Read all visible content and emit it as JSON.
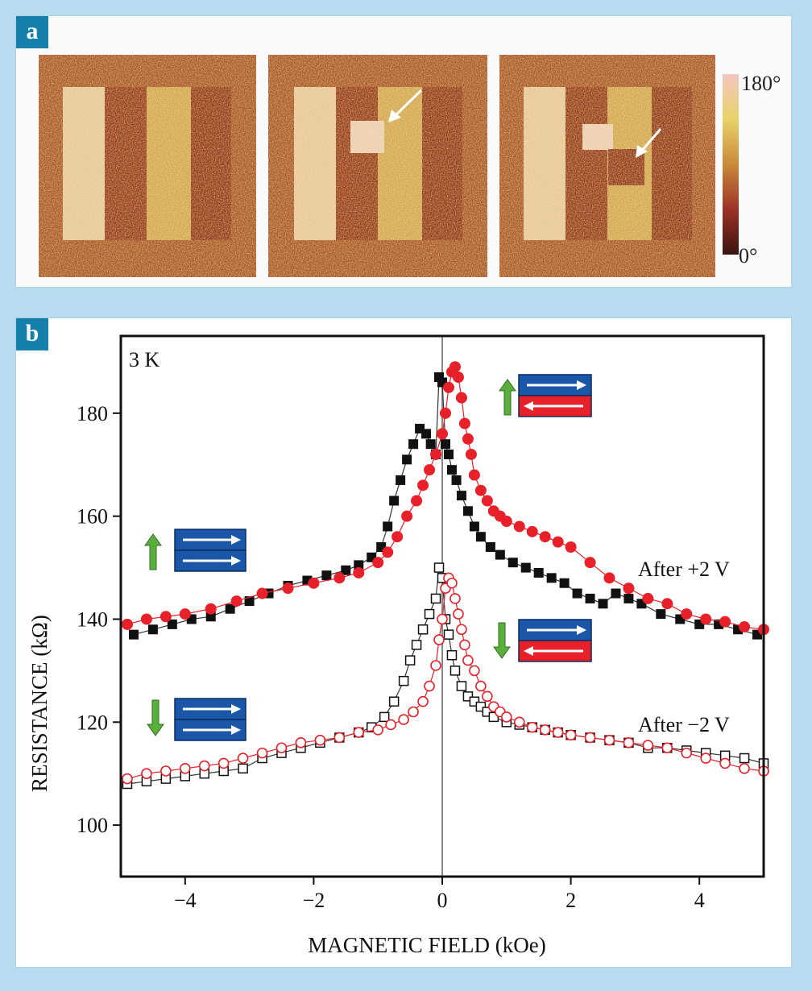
{
  "panel_a": {
    "letter": "a",
    "colorbar": {
      "max_label": "180°",
      "min_label": "0°"
    }
  },
  "panel_b": {
    "letter": "b",
    "temperature_label": "3 K",
    "annotation_top": "After +2 V",
    "annotation_bottom": "After −2 V"
  },
  "colors": {
    "frame": "#1680ad",
    "background": "#b8dcef",
    "red": "#e8202a",
    "black": "#111111",
    "arrow_green": "#5aae3c",
    "layer_blue": "#1b57a8"
  },
  "icons": [
    "green-up-arrow-icon",
    "green-down-arrow-icon",
    "parallel-magnetization-icon",
    "antiparallel-magnetization-icon",
    "white-arrow-icon"
  ],
  "chart_data": {
    "type": "scatter",
    "xlabel": "MAGNETIC FIELD (kOe)",
    "ylabel": "RESISTANCE (kΩ)",
    "xlim": [
      -5,
      5
    ],
    "ylim": [
      90,
      195
    ],
    "xticks": [
      -4,
      -2,
      0,
      2,
      4
    ],
    "xtick_labels": [
      "−4",
      "−2",
      "0",
      "2",
      "4"
    ],
    "yticks": [
      100,
      120,
      140,
      160,
      180
    ],
    "ytick_labels": [
      "100",
      "120",
      "140",
      "160",
      "180"
    ],
    "grid": false,
    "vertical_line_at": 0,
    "series": [
      {
        "marker": "filled-square",
        "color": "#111111",
        "x": [
          -4.8,
          -4.5,
          -4.2,
          -3.9,
          -3.6,
          -3.3,
          -3.0,
          -2.7,
          -2.4,
          -2.1,
          -1.8,
          -1.5,
          -1.3,
          -1.1,
          -0.95,
          -0.85,
          -0.75,
          -0.65,
          -0.55,
          -0.45,
          -0.35,
          -0.25,
          -0.18,
          -0.1,
          -0.05,
          0.0,
          0.05,
          0.1,
          0.15,
          0.22,
          0.3,
          0.4,
          0.5,
          0.6,
          0.75,
          0.9,
          1.1,
          1.3,
          1.5,
          1.7,
          1.9,
          2.1,
          2.3,
          2.5,
          2.7,
          2.9,
          3.1,
          3.4,
          3.7,
          4.0,
          4.3,
          4.6,
          4.9
        ],
        "y": [
          137,
          138,
          139,
          140,
          140.5,
          142,
          143.5,
          145,
          146.5,
          147.5,
          148.5,
          149.5,
          150.5,
          152,
          154,
          158,
          163,
          167,
          171,
          174,
          177,
          176,
          174,
          172,
          187,
          186,
          174,
          172,
          169,
          167,
          164,
          161,
          158,
          156,
          154,
          152.5,
          151,
          150,
          149,
          148,
          147,
          145,
          144,
          143,
          145,
          144,
          143,
          141,
          140,
          139,
          139,
          138,
          137
        ]
      },
      {
        "marker": "filled-circle",
        "color": "#e8202a",
        "x": [
          -4.9,
          -4.6,
          -4.3,
          -4.0,
          -3.6,
          -3.2,
          -2.8,
          -2.4,
          -2.0,
          -1.6,
          -1.3,
          -1.0,
          -0.85,
          -0.7,
          -0.55,
          -0.4,
          -0.3,
          -0.2,
          -0.1,
          0.0,
          0.05,
          0.1,
          0.15,
          0.2,
          0.25,
          0.3,
          0.35,
          0.4,
          0.45,
          0.5,
          0.6,
          0.7,
          0.8,
          0.9,
          1.0,
          1.2,
          1.4,
          1.6,
          1.8,
          2.0,
          2.3,
          2.6,
          2.9,
          3.2,
          3.5,
          3.8,
          4.1,
          4.4,
          4.7,
          5.0
        ],
        "y": [
          139,
          140,
          140.5,
          141,
          142,
          143.5,
          145,
          146,
          147,
          148,
          149,
          151,
          153,
          156,
          160,
          163,
          166,
          169,
          172,
          176,
          180,
          185,
          188,
          189,
          187,
          183,
          178,
          175,
          172,
          168,
          165,
          163,
          161,
          160,
          159,
          158,
          157,
          156,
          155,
          154,
          151,
          148,
          146,
          144,
          143,
          141,
          140,
          139.5,
          138.5,
          138
        ]
      },
      {
        "marker": "open-square",
        "color": "#111111",
        "x": [
          -4.9,
          -4.6,
          -4.3,
          -4.0,
          -3.7,
          -3.4,
          -3.1,
          -2.8,
          -2.5,
          -2.2,
          -1.9,
          -1.6,
          -1.3,
          -1.1,
          -0.9,
          -0.75,
          -0.6,
          -0.5,
          -0.4,
          -0.3,
          -0.2,
          -0.1,
          -0.05,
          0.0,
          0.05,
          0.1,
          0.15,
          0.2,
          0.3,
          0.4,
          0.5,
          0.6,
          0.7,
          0.8,
          1.0,
          1.2,
          1.4,
          1.6,
          1.8,
          2.0,
          2.3,
          2.6,
          2.9,
          3.2,
          3.5,
          3.8,
          4.1,
          4.4,
          4.7,
          5.0
        ],
        "y": [
          108,
          108.5,
          109,
          109.5,
          110,
          110.5,
          111,
          113,
          114,
          115,
          116,
          117,
          118,
          119,
          121,
          124,
          128,
          132,
          135,
          138,
          141,
          144,
          150,
          148,
          140,
          137,
          133,
          130,
          127,
          125,
          124,
          123,
          122,
          121,
          120,
          119.5,
          119,
          118.5,
          118,
          117.5,
          117,
          116.5,
          116,
          115,
          115,
          114.5,
          114,
          113.5,
          113,
          112
        ]
      },
      {
        "marker": "open-circle",
        "color": "#e8202a",
        "x": [
          -4.9,
          -4.6,
          -4.3,
          -4.0,
          -3.7,
          -3.4,
          -3.1,
          -2.8,
          -2.5,
          -2.2,
          -1.9,
          -1.6,
          -1.3,
          -1.0,
          -0.8,
          -0.6,
          -0.45,
          -0.3,
          -0.2,
          -0.1,
          -0.05,
          0.0,
          0.05,
          0.1,
          0.15,
          0.2,
          0.25,
          0.3,
          0.35,
          0.4,
          0.5,
          0.6,
          0.7,
          0.8,
          0.9,
          1.0,
          1.2,
          1.4,
          1.6,
          1.8,
          2.0,
          2.3,
          2.6,
          2.9,
          3.2,
          3.5,
          3.8,
          4.1,
          4.4,
          4.7,
          5.0
        ],
        "y": [
          109,
          110,
          110.5,
          111,
          111.5,
          112,
          113,
          114,
          115,
          116,
          116.5,
          117,
          118,
          118.5,
          119.5,
          120.5,
          122,
          124,
          127,
          131,
          136,
          140,
          146,
          148,
          147,
          144,
          141,
          138,
          135,
          132,
          130,
          127,
          125,
          123,
          122,
          121,
          120,
          119,
          118.5,
          118,
          117.5,
          117,
          116.5,
          116,
          115.5,
          115,
          114,
          113,
          112,
          111,
          110.5
        ]
      }
    ]
  }
}
